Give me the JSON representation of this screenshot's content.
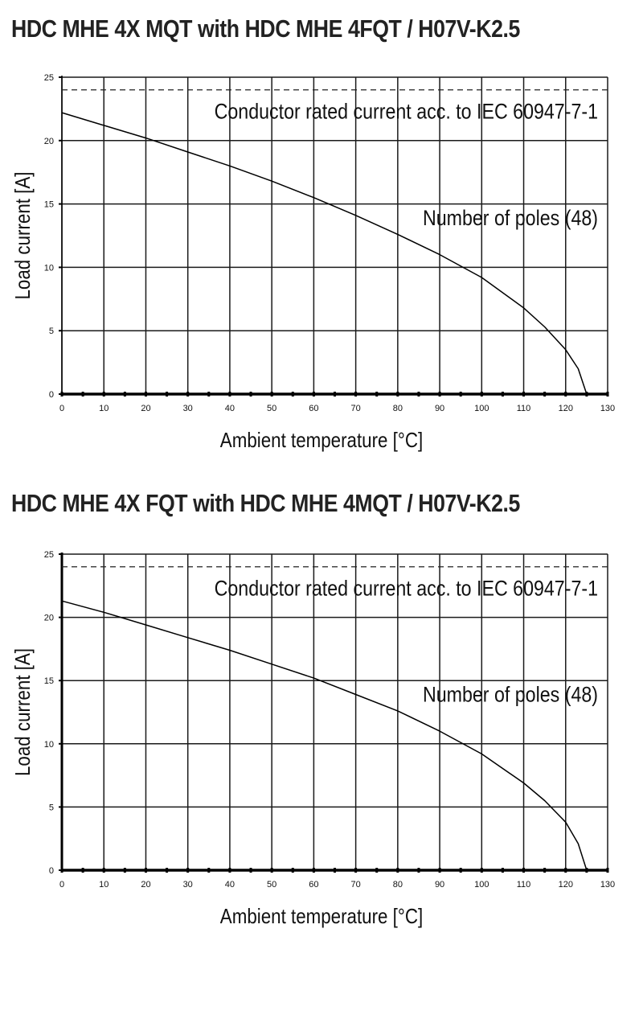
{
  "chart_data": [
    {
      "type": "line",
      "title": "HDC MHE 4X MQT with HDC MHE 4FQT / H07V-K2.5",
      "xlabel": "Ambient temperature [°C]",
      "ylabel": "Load current [A]",
      "xlim": [
        0,
        130
      ],
      "ylim": [
        0,
        25
      ],
      "x_ticks": [
        "0",
        "10",
        "20",
        "30",
        "40",
        "50",
        "60",
        "70",
        "80",
        "90",
        "100",
        "110",
        "120",
        "130"
      ],
      "y_ticks": [
        "0",
        "5",
        "10",
        "15",
        "20",
        "25"
      ],
      "grid": true,
      "series": [
        {
          "name": "Number of poles (48)",
          "style": "solid",
          "x": [
            0,
            10,
            20,
            30,
            40,
            50,
            60,
            70,
            80,
            90,
            100,
            110,
            115,
            120,
            123,
            125
          ],
          "values": [
            22.2,
            21.2,
            20.2,
            19.1,
            18.0,
            16.8,
            15.5,
            14.1,
            12.6,
            11.0,
            9.2,
            6.8,
            5.3,
            3.5,
            2.0,
            0
          ]
        },
        {
          "name": "Conductor rated current acc. to IEC 60947-7-1",
          "style": "dashed",
          "x": [
            0,
            130
          ],
          "values": [
            24,
            24
          ]
        }
      ],
      "annotations": [
        "Conductor rated current acc. to IEC 60947-7-1",
        "Number of poles (48)"
      ]
    },
    {
      "type": "line",
      "title": "HDC MHE 4X FQT with HDC MHE 4MQT / H07V-K2.5",
      "xlabel": "Ambient temperature [°C]",
      "ylabel": "Load current [A]",
      "xlim": [
        0,
        130
      ],
      "ylim": [
        0,
        25
      ],
      "x_ticks": [
        "0",
        "10",
        "20",
        "30",
        "40",
        "50",
        "60",
        "70",
        "80",
        "90",
        "100",
        "110",
        "120",
        "130"
      ],
      "y_ticks": [
        "0",
        "5",
        "10",
        "15",
        "20",
        "25"
      ],
      "grid": true,
      "series": [
        {
          "name": "Number of poles (48)",
          "style": "solid",
          "x": [
            0,
            10,
            20,
            30,
            40,
            50,
            60,
            70,
            80,
            90,
            100,
            110,
            115,
            120,
            123,
            125
          ],
          "values": [
            21.3,
            20.4,
            19.4,
            18.4,
            17.4,
            16.3,
            15.2,
            13.9,
            12.6,
            11.0,
            9.2,
            6.9,
            5.5,
            3.8,
            2.1,
            0
          ]
        },
        {
          "name": "Conductor rated current acc. to IEC 60947-7-1",
          "style": "dashed",
          "x": [
            0,
            130
          ],
          "values": [
            24,
            24
          ]
        }
      ],
      "annotations": [
        "Conductor rated current acc. to IEC 60947-7-1",
        "Number of poles (48)"
      ]
    }
  ]
}
